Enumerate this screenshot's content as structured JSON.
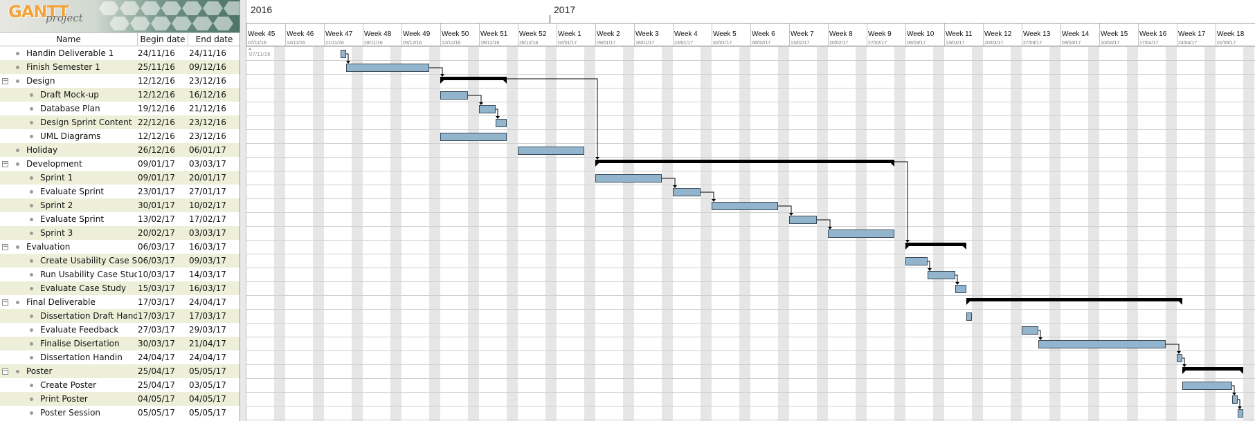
{
  "logo": {
    "brand": "GANTT",
    "sub": "project"
  },
  "columns": {
    "name": "Name",
    "begin": "Begin date",
    "end": "End date"
  },
  "years": [
    {
      "label": "2016",
      "week": 0
    },
    {
      "label": "2017",
      "week": 7.9
    }
  ],
  "weeks": [
    {
      "label": "Week 45",
      "date": "07/11/16"
    },
    {
      "label": "Week 46",
      "date": "14/11/16"
    },
    {
      "label": "Week 47",
      "date": "21/11/16"
    },
    {
      "label": "Week 48",
      "date": "28/11/16"
    },
    {
      "label": "Week 49",
      "date": "05/12/16"
    },
    {
      "label": "Week 50",
      "date": "12/12/16"
    },
    {
      "label": "Week 51",
      "date": "19/12/16"
    },
    {
      "label": "Week 52",
      "date": "26/12/16"
    },
    {
      "label": "Week 1",
      "date": "02/01/17"
    },
    {
      "label": "Week 2",
      "date": "09/01/17"
    },
    {
      "label": "Week 3",
      "date": "16/01/17"
    },
    {
      "label": "Week 4",
      "date": "23/01/17"
    },
    {
      "label": "Week 5",
      "date": "30/01/17"
    },
    {
      "label": "Week 6",
      "date": "06/02/17"
    },
    {
      "label": "Week 7",
      "date": "13/02/17"
    },
    {
      "label": "Week 8",
      "date": "20/02/17"
    },
    {
      "label": "Week 9",
      "date": "27/02/17"
    },
    {
      "label": "Week 10",
      "date": "06/03/17"
    },
    {
      "label": "Week 11",
      "date": "13/03/17"
    },
    {
      "label": "Week 12",
      "date": "20/03/17"
    },
    {
      "label": "Week 13",
      "date": "27/03/17"
    },
    {
      "label": "Week 14",
      "date": "03/04/17"
    },
    {
      "label": "Week 15",
      "date": "10/04/17"
    },
    {
      "label": "Week 16",
      "date": "17/04/17"
    },
    {
      "label": "Week 17",
      "date": "24/04/17"
    },
    {
      "label": "Week 18",
      "date": "01/05/17"
    }
  ],
  "today_label": "07/11/16",
  "tasks": [
    {
      "name": "Handin Deliverable 1",
      "begin": "24/11/16",
      "end": "24/11/16",
      "level": 0,
      "group": false
    },
    {
      "name": "Finish Semester 1",
      "begin": "25/11/16",
      "end": "09/12/16",
      "level": 0,
      "group": false
    },
    {
      "name": "Design",
      "begin": "12/12/16",
      "end": "23/12/16",
      "level": 0,
      "group": true
    },
    {
      "name": "Draft Mock-up",
      "begin": "12/12/16",
      "end": "16/12/16",
      "level": 1,
      "group": false
    },
    {
      "name": "Database Plan",
      "begin": "19/12/16",
      "end": "21/12/16",
      "level": 1,
      "group": false
    },
    {
      "name": "Design Sprint Content",
      "begin": "22/12/16",
      "end": "23/12/16",
      "level": 1,
      "group": false
    },
    {
      "name": "UML Diagrams",
      "begin": "12/12/16",
      "end": "23/12/16",
      "level": 1,
      "group": false
    },
    {
      "name": "Holiday",
      "begin": "26/12/16",
      "end": "06/01/17",
      "level": 0,
      "group": false
    },
    {
      "name": "Development",
      "begin": "09/01/17",
      "end": "03/03/17",
      "level": 0,
      "group": true
    },
    {
      "name": "Sprint 1",
      "begin": "09/01/17",
      "end": "20/01/17",
      "level": 1,
      "group": false
    },
    {
      "name": "Evaluate Sprint",
      "begin": "23/01/17",
      "end": "27/01/17",
      "level": 1,
      "group": false
    },
    {
      "name": "Sprint 2",
      "begin": "30/01/17",
      "end": "10/02/17",
      "level": 1,
      "group": false
    },
    {
      "name": "Evaluate Sprint",
      "begin": "13/02/17",
      "end": "17/02/17",
      "level": 1,
      "group": false
    },
    {
      "name": "Sprint 3",
      "begin": "20/02/17",
      "end": "03/03/17",
      "level": 1,
      "group": false
    },
    {
      "name": "Evaluation",
      "begin": "06/03/17",
      "end": "16/03/17",
      "level": 0,
      "group": true
    },
    {
      "name": "Create Usability Case Stu...",
      "begin": "06/03/17",
      "end": "09/03/17",
      "level": 1,
      "group": false
    },
    {
      "name": "Run Usability Case Study",
      "begin": "10/03/17",
      "end": "14/03/17",
      "level": 1,
      "group": false
    },
    {
      "name": "Evaluate Case Study",
      "begin": "15/03/17",
      "end": "16/03/17",
      "level": 1,
      "group": false
    },
    {
      "name": "Final Deliverable",
      "begin": "17/03/17",
      "end": "24/04/17",
      "level": 0,
      "group": true
    },
    {
      "name": "Dissertation Draft Handin",
      "begin": "17/03/17",
      "end": "17/03/17",
      "level": 1,
      "group": false
    },
    {
      "name": "Evaluate Feedback",
      "begin": "27/03/17",
      "end": "29/03/17",
      "level": 1,
      "group": false
    },
    {
      "name": "Finalise Disertation",
      "begin": "30/03/17",
      "end": "21/04/17",
      "level": 1,
      "group": false
    },
    {
      "name": "Dissertation Handin",
      "begin": "24/04/17",
      "end": "24/04/17",
      "level": 1,
      "group": false
    },
    {
      "name": "Poster",
      "begin": "25/04/17",
      "end": "05/05/17",
      "level": 0,
      "group": true
    },
    {
      "name": "Create Poster",
      "begin": "25/04/17",
      "end": "03/05/17",
      "level": 1,
      "group": false
    },
    {
      "name": "Print Poster",
      "begin": "04/05/17",
      "end": "04/05/17",
      "level": 1,
      "group": false
    },
    {
      "name": "Poster Session",
      "begin": "05/05/17",
      "end": "05/05/17",
      "level": 1,
      "group": false
    }
  ],
  "dependencies": [
    [
      0,
      1
    ],
    [
      1,
      2
    ],
    [
      3,
      4
    ],
    [
      4,
      5
    ],
    [
      2,
      8
    ],
    [
      9,
      10
    ],
    [
      10,
      11
    ],
    [
      11,
      12
    ],
    [
      12,
      13
    ],
    [
      8,
      14
    ],
    [
      15,
      16
    ],
    [
      16,
      17
    ],
    [
      20,
      21
    ],
    [
      21,
      22
    ],
    [
      22,
      23
    ],
    [
      24,
      25
    ],
    [
      25,
      26
    ]
  ],
  "colors": {
    "task": "#92b4cc",
    "task_border": "#3a4a58",
    "summary": "#000000",
    "weekend": "#e6e6e6",
    "grid": "#cfcfcf",
    "alt_row": "#edefd9"
  }
}
